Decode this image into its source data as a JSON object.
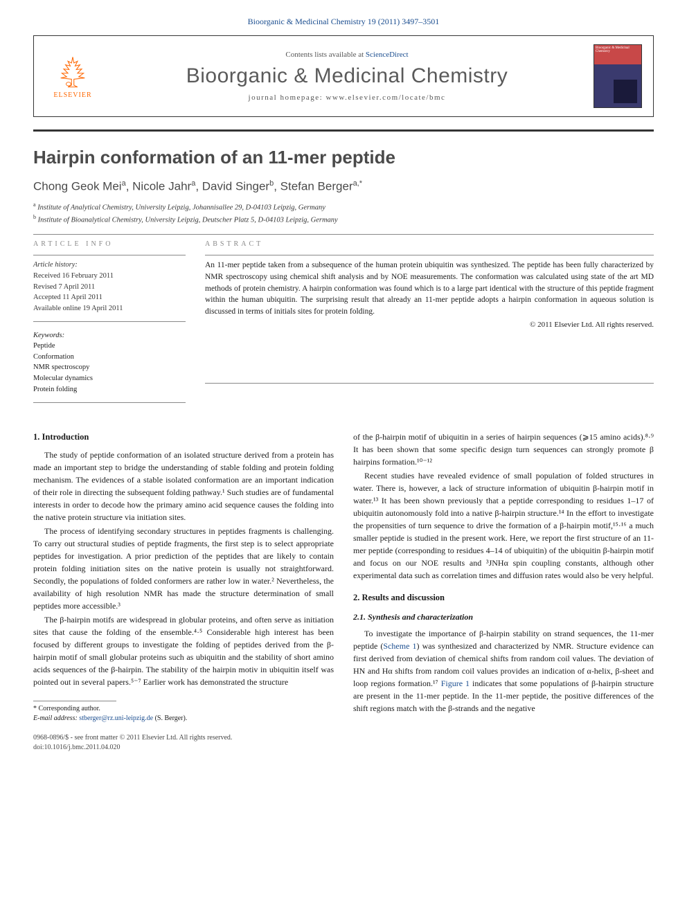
{
  "citation": "Bioorganic & Medicinal Chemistry 19 (2011) 3497–3501",
  "header": {
    "contents_prefix": "Contents lists available at ",
    "contents_link": "ScienceDirect",
    "journal": "Bioorganic & Medicinal Chemistry",
    "homepage_prefix": "journal homepage: ",
    "homepage_url": "www.elsevier.com/locate/bmc",
    "publisher_label": "ELSEVIER",
    "cover_title": "Bioorganic & Medicinal Chemistry"
  },
  "article": {
    "title": "Hairpin conformation of an 11-mer peptide",
    "authors_html": "Chong Geok Mei<sup>a</sup>, Nicole Jahr<sup>a</sup>, David Singer<sup>b</sup>, Stefan Berger<sup>a,*</sup>",
    "affiliations": [
      {
        "sup": "a",
        "text": "Institute of Analytical Chemistry, University Leipzig, Johannisallee 29, D-04103 Leipzig, Germany"
      },
      {
        "sup": "b",
        "text": "Institute of Bioanalytical Chemistry, University Leipzig, Deutscher Platz 5, D-04103 Leipzig, Germany"
      }
    ]
  },
  "info": {
    "article_info_label": "ARTICLE INFO",
    "abstract_label": "ABSTRACT",
    "history_label": "Article history:",
    "received": "Received 16 February 2011",
    "revised": "Revised 7 April 2011",
    "accepted": "Accepted 11 April 2011",
    "online": "Available online 19 April 2011",
    "keywords_label": "Keywords:",
    "keywords": [
      "Peptide",
      "Conformation",
      "NMR spectroscopy",
      "Molecular dynamics",
      "Protein folding"
    ],
    "abstract": "An 11-mer peptide taken from a subsequence of the human protein ubiquitin was synthesized. The peptide has been fully characterized by NMR spectroscopy using chemical shift analysis and by NOE measurements. The conformation was calculated using state of the art MD methods of protein chemistry. A hairpin conformation was found which is to a large part identical with the structure of this peptide fragment within the human ubiquitin. The surprising result that already an 11-mer peptide adopts a hairpin conformation in aqueous solution is discussed in terms of initials sites for protein folding.",
    "copyright": "© 2011 Elsevier Ltd. All rights reserved."
  },
  "body": {
    "s1_head": "1. Introduction",
    "s1_p1": "The study of peptide conformation of an isolated structure derived from a protein has made an important step to bridge the understanding of stable folding and protein folding mechanism. The evidences of a stable isolated conformation are an important indication of their role in directing the subsequent folding pathway.¹ Such studies are of fundamental interests in order to decode how the primary amino acid sequence causes the folding into the native protein structure via initiation sites.",
    "s1_p2": "The process of identifying secondary structures in peptides fragments is challenging. To carry out structural studies of peptide fragments, the first step is to select appropriate peptides for investigation. A prior prediction of the peptides that are likely to contain protein folding initiation sites on the native protein is usually not straightforward. Secondly, the populations of folded conformers are rather low in water.² Nevertheless, the availability of high resolution NMR has made the structure determination of small peptides more accessible.³",
    "s1_p3": "The β-hairpin motifs are widespread in globular proteins, and often serve as initiation sites that cause the folding of the ensemble.⁴·⁵ Considerable high interest has been focused by different groups to investigate the folding of peptides derived from the β-hairpin motif of small globular proteins such as ubiquitin and the stability of short amino acids sequences of the β-hairpin. The stability of the hairpin motiv in ubiquitin itself was pointed out in several papers.⁵⁻⁷ Earlier work has demonstrated the structure",
    "s1_p4": "of the β-hairpin motif of ubiquitin in a series of hairpin sequences (⩾15 amino acids).⁸·⁹ It has been shown that some specific design turn sequences can strongly promote β hairpins formation.¹⁰⁻¹²",
    "s1_p5": "Recent studies have revealed evidence of small population of folded structures in water. There is, however, a lack of structure information of ubiquitin β-hairpin motif in water.¹³ It has been shown previously that a peptide corresponding to residues 1–17 of ubiquitin autonomously fold into a native β-hairpin structure.¹⁴ In the effort to investigate the propensities of turn sequence to drive the formation of a β-hairpin motif,¹⁵·¹⁶ a much smaller peptide is studied in the present work. Here, we report the first structure of an 11-mer peptide (corresponding to residues 4–14 of ubiquitin) of the ubiquitin β-hairpin motif and focus on our NOE results and ³JNHα spin coupling constants, although other experimental data such as correlation times and diffusion rates would also be very helpful.",
    "s2_head": "2. Results and discussion",
    "s2_1_head": "2.1. Synthesis and characterization",
    "s2_1_p1": "To investigate the importance of β-hairpin stability on strand sequences, the 11-mer peptide (Scheme 1) was synthesized and characterized by NMR. Structure evidence can first derived from deviation of chemical shifts from random coil values. The deviation of HN and Hα shifts from random coil values provides an indication of α-helix, β-sheet and loop regions formation.¹⁷ Figure 1 indicates that some populations of β-hairpin structure are present in the 11-mer peptide. In the 11-mer peptide, the positive differences of the shift regions match with the β-strands and the negative"
  },
  "footnote": {
    "corr_label": "* Corresponding author.",
    "email_label": "E-mail address: ",
    "email": "stberger@rz.uni-leipzig.de",
    "email_who": " (S. Berger)."
  },
  "bottom": {
    "issn": "0968-0896/$ - see front matter © 2011 Elsevier Ltd. All rights reserved.",
    "doi": "doi:10.1016/j.bmc.2011.04.020"
  },
  "colors": {
    "link": "#1a4d8f",
    "elsevier_orange": "#ff6600",
    "header_gray": "#5a5a5a",
    "rule": "#333333"
  }
}
